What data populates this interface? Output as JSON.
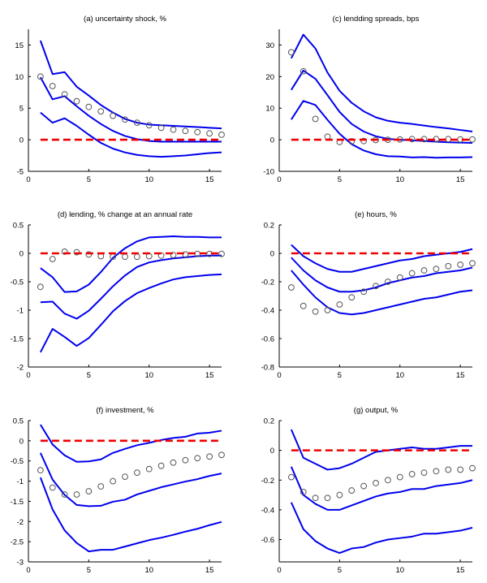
{
  "chart_data": [
    {
      "type": "line",
      "title": "(a) uncertainty shock, %",
      "xlabel": "",
      "ylabel": "",
      "xlim": [
        0,
        16
      ],
      "ylim": [
        -5,
        17.5
      ],
      "xticks": [
        0,
        5,
        10,
        15
      ],
      "yticks": [
        -5,
        0,
        5,
        10,
        15
      ],
      "grid": false,
      "x": [
        1,
        2,
        3,
        4,
        5,
        6,
        7,
        8,
        9,
        10,
        11,
        12,
        13,
        14,
        15,
        16
      ],
      "series": [
        {
          "name": "upper band",
          "style": "blue-solid",
          "values": [
            15.7,
            10.4,
            10.7,
            8.4,
            7.0,
            5.5,
            4.3,
            3.3,
            2.7,
            2.4,
            2.3,
            2.2,
            2.1,
            2.0,
            1.9,
            1.8
          ]
        },
        {
          "name": "median",
          "style": "blue-solid",
          "values": [
            9.9,
            6.4,
            6.9,
            5.3,
            3.8,
            2.5,
            1.4,
            0.6,
            0.1,
            -0.2,
            -0.3,
            -0.3,
            -0.3,
            -0.3,
            -0.3,
            -0.3
          ]
        },
        {
          "name": "lower band",
          "style": "blue-solid",
          "values": [
            4.3,
            2.7,
            3.4,
            2.2,
            0.8,
            -0.5,
            -1.4,
            -2.0,
            -2.4,
            -2.6,
            -2.7,
            -2.6,
            -2.5,
            -2.3,
            -2.1,
            -2.0
          ]
        },
        {
          "name": "data estimate",
          "style": "circles",
          "values": [
            10.0,
            8.5,
            7.2,
            6.1,
            5.2,
            4.5,
            3.8,
            3.2,
            2.7,
            2.3,
            1.9,
            1.6,
            1.4,
            1.2,
            1.0,
            0.8
          ]
        },
        {
          "name": "zero line",
          "style": "red-dashed",
          "values": [
            0,
            0,
            0,
            0,
            0,
            0,
            0,
            0,
            0,
            0,
            0,
            0,
            0,
            0,
            0,
            0
          ]
        }
      ]
    },
    {
      "type": "line",
      "title": "(c) lendding spreads, bps",
      "xlabel": "",
      "ylabel": "",
      "xlim": [
        0,
        16
      ],
      "ylim": [
        -10,
        35
      ],
      "xticks": [
        0,
        5,
        10,
        15
      ],
      "yticks": [
        -10,
        0,
        10,
        20,
        30
      ],
      "grid": false,
      "x": [
        1,
        2,
        3,
        4,
        5,
        6,
        7,
        8,
        9,
        10,
        11,
        12,
        13,
        14,
        15,
        16
      ],
      "series": [
        {
          "name": "upper band",
          "style": "blue-solid",
          "values": [
            25.8,
            33.3,
            28.9,
            21.3,
            15.5,
            11.7,
            9.0,
            7.1,
            6.0,
            5.4,
            5.0,
            4.5,
            4.0,
            3.6,
            3.1,
            2.6
          ]
        },
        {
          "name": "median",
          "style": "blue-solid",
          "values": [
            15.8,
            21.9,
            19.3,
            14.1,
            8.8,
            5.0,
            2.6,
            1.1,
            0.3,
            0.0,
            -0.2,
            -0.4,
            -0.6,
            -0.8,
            -0.9,
            -1.0
          ]
        },
        {
          "name": "lower band",
          "style": "blue-solid",
          "values": [
            6.4,
            12.3,
            11.0,
            6.3,
            1.9,
            -1.4,
            -3.4,
            -4.6,
            -5.2,
            -5.3,
            -5.6,
            -5.5,
            -5.7,
            -5.6,
            -5.6,
            -5.5
          ]
        },
        {
          "name": "data estimate",
          "style": "circles",
          "values": [
            27.7,
            21.7,
            6.6,
            1.0,
            -0.7,
            -0.5,
            -0.4,
            -0.1,
            0.0,
            0.1,
            0.2,
            0.2,
            0.2,
            0.2,
            0.1,
            0.1
          ]
        },
        {
          "name": "zero line",
          "style": "red-dashed",
          "values": [
            0,
            0,
            0,
            0,
            0,
            0,
            0,
            0,
            0,
            0,
            0,
            0,
            0,
            0,
            0,
            0
          ]
        }
      ]
    },
    {
      "type": "line",
      "title": "(d) lending, % change at an annual rate",
      "xlabel": "",
      "ylabel": "",
      "xlim": [
        0,
        16
      ],
      "ylim": [
        -2,
        0.5
      ],
      "xticks": [
        0,
        5,
        10,
        15
      ],
      "yticks": [
        -2,
        -1.5,
        -1,
        -0.5,
        0,
        0.5
      ],
      "ytick_labels": [
        "-2",
        "-1.5",
        "-1",
        "-0.5",
        "0",
        "0.5"
      ],
      "grid": false,
      "x": [
        1,
        2,
        3,
        4,
        5,
        6,
        7,
        8,
        9,
        10,
        11,
        12,
        13,
        14,
        15,
        16
      ],
      "series": [
        {
          "name": "upper band",
          "style": "blue-solid",
          "values": [
            -0.26,
            -0.42,
            -0.68,
            -0.67,
            -0.55,
            -0.33,
            -0.08,
            0.09,
            0.21,
            0.28,
            0.29,
            0.3,
            0.29,
            0.29,
            0.28,
            0.28
          ]
        },
        {
          "name": "median",
          "style": "blue-solid",
          "values": [
            -0.86,
            -0.85,
            -1.06,
            -1.15,
            -1.01,
            -0.8,
            -0.58,
            -0.39,
            -0.24,
            -0.16,
            -0.12,
            -0.09,
            -0.07,
            -0.05,
            -0.04,
            -0.04
          ]
        },
        {
          "name": "lower band",
          "style": "blue-solid",
          "values": [
            -1.74,
            -1.33,
            -1.47,
            -1.63,
            -1.49,
            -1.26,
            -1.02,
            -0.84,
            -0.7,
            -0.61,
            -0.53,
            -0.46,
            -0.42,
            -0.4,
            -0.38,
            -0.37
          ]
        },
        {
          "name": "data estimate",
          "style": "circles",
          "values": [
            -0.59,
            -0.1,
            0.03,
            0.02,
            -0.02,
            -0.05,
            -0.06,
            -0.06,
            -0.06,
            -0.05,
            -0.04,
            -0.03,
            -0.02,
            -0.01,
            -0.01,
            -0.01
          ]
        },
        {
          "name": "zero line",
          "style": "red-dashed",
          "values": [
            0,
            0,
            0,
            0,
            0,
            0,
            0,
            0,
            0,
            0,
            0,
            0,
            0,
            0,
            0,
            0
          ]
        }
      ]
    },
    {
      "type": "line",
      "title": "(e) hours, %",
      "xlabel": "",
      "ylabel": "",
      "xlim": [
        0,
        16
      ],
      "ylim": [
        -0.8,
        0.2
      ],
      "xticks": [
        0,
        5,
        10,
        15
      ],
      "yticks": [
        -0.8,
        -0.6,
        -0.4,
        -0.2,
        0,
        0.2
      ],
      "ytick_labels": [
        "-0.8",
        "-0.6",
        "-0.4",
        "-0.2",
        "0",
        "0.2"
      ],
      "grid": false,
      "x": [
        1,
        2,
        3,
        4,
        5,
        6,
        7,
        8,
        9,
        10,
        11,
        12,
        13,
        14,
        15,
        16
      ],
      "series": [
        {
          "name": "upper band",
          "style": "blue-solid",
          "values": [
            0.06,
            -0.02,
            -0.07,
            -0.11,
            -0.13,
            -0.13,
            -0.11,
            -0.09,
            -0.07,
            -0.05,
            -0.04,
            -0.02,
            -0.01,
            0.0,
            0.01,
            0.03
          ]
        },
        {
          "name": "median",
          "style": "blue-solid",
          "values": [
            -0.03,
            -0.12,
            -0.19,
            -0.24,
            -0.27,
            -0.27,
            -0.26,
            -0.24,
            -0.21,
            -0.19,
            -0.17,
            -0.16,
            -0.14,
            -0.13,
            -0.12,
            -0.1
          ]
        },
        {
          "name": "lower band",
          "style": "blue-solid",
          "values": [
            -0.12,
            -0.22,
            -0.31,
            -0.38,
            -0.42,
            -0.43,
            -0.42,
            -0.4,
            -0.38,
            -0.36,
            -0.34,
            -0.32,
            -0.31,
            -0.29,
            -0.27,
            -0.26
          ]
        },
        {
          "name": "data estimate",
          "style": "circles",
          "values": [
            -0.24,
            -0.37,
            -0.41,
            -0.4,
            -0.36,
            -0.31,
            -0.27,
            -0.23,
            -0.2,
            -0.17,
            -0.14,
            -0.12,
            -0.11,
            -0.09,
            -0.08,
            -0.07
          ]
        },
        {
          "name": "zero line",
          "style": "red-dashed",
          "values": [
            0,
            0,
            0,
            0,
            0,
            0,
            0,
            0,
            0,
            0,
            0,
            0,
            0,
            0,
            0,
            0
          ]
        }
      ]
    },
    {
      "type": "line",
      "title": "(f) investment, %",
      "xlabel": "",
      "ylabel": "",
      "xlim": [
        0,
        16
      ],
      "ylim": [
        -3,
        0.5
      ],
      "xticks": [
        0,
        5,
        10,
        15
      ],
      "yticks": [
        -3,
        -2.5,
        -2,
        -1.5,
        -1,
        -0.5,
        0,
        0.5
      ],
      "ytick_labels": [
        "-3",
        "-2.5",
        "-2",
        "-1.5",
        "-1",
        "-0.5",
        "0",
        "0.5"
      ],
      "grid": false,
      "x": [
        1,
        2,
        3,
        4,
        5,
        6,
        7,
        8,
        9,
        10,
        11,
        12,
        13,
        14,
        15,
        16
      ],
      "series": [
        {
          "name": "upper band",
          "style": "blue-solid",
          "values": [
            0.4,
            -0.09,
            -0.36,
            -0.52,
            -0.51,
            -0.46,
            -0.3,
            -0.2,
            -0.11,
            -0.05,
            0.02,
            0.07,
            0.1,
            0.18,
            0.2,
            0.25
          ]
        },
        {
          "name": "median",
          "style": "blue-solid",
          "values": [
            -0.3,
            -0.96,
            -1.34,
            -1.59,
            -1.62,
            -1.61,
            -1.51,
            -1.46,
            -1.33,
            -1.24,
            -1.15,
            -1.08,
            -1.01,
            -0.95,
            -0.87,
            -0.81
          ]
        },
        {
          "name": "lower band",
          "style": "blue-solid",
          "values": [
            -0.91,
            -1.7,
            -2.22,
            -2.53,
            -2.74,
            -2.7,
            -2.7,
            -2.62,
            -2.54,
            -2.46,
            -2.4,
            -2.33,
            -2.25,
            -2.18,
            -2.09,
            -2.01
          ]
        },
        {
          "name": "data estimate",
          "style": "circles",
          "values": [
            -0.73,
            -1.16,
            -1.33,
            -1.33,
            -1.25,
            -1.13,
            -1.0,
            -0.89,
            -0.79,
            -0.7,
            -0.62,
            -0.54,
            -0.48,
            -0.43,
            -0.39,
            -0.35
          ]
        },
        {
          "name": "zero line",
          "style": "red-dashed",
          "values": [
            0,
            0,
            0,
            0,
            0,
            0,
            0,
            0,
            0,
            0,
            0,
            0,
            0,
            0,
            0,
            0
          ]
        }
      ]
    },
    {
      "type": "line",
      "title": "(g) output, %",
      "xlabel": "",
      "ylabel": "",
      "xlim": [
        0,
        16
      ],
      "ylim": [
        -0.75,
        0.2
      ],
      "xticks": [
        0,
        5,
        10,
        15
      ],
      "yticks": [
        -0.6,
        -0.4,
        -0.2,
        0,
        0.2
      ],
      "ytick_labels": [
        "-0.6",
        "-0.4",
        "-0.2",
        "0",
        "0.2"
      ],
      "grid": false,
      "x": [
        1,
        2,
        3,
        4,
        5,
        6,
        7,
        8,
        9,
        10,
        11,
        12,
        13,
        14,
        15,
        16
      ],
      "series": [
        {
          "name": "upper band",
          "style": "blue-solid",
          "values": [
            0.14,
            -0.05,
            -0.09,
            -0.13,
            -0.12,
            -0.09,
            -0.05,
            -0.01,
            0.0,
            0.01,
            0.02,
            0.01,
            0.01,
            0.02,
            0.03,
            0.03
          ]
        },
        {
          "name": "median",
          "style": "blue-solid",
          "values": [
            -0.11,
            -0.3,
            -0.36,
            -0.4,
            -0.4,
            -0.37,
            -0.34,
            -0.31,
            -0.29,
            -0.28,
            -0.26,
            -0.26,
            -0.24,
            -0.23,
            -0.22,
            -0.2
          ]
        },
        {
          "name": "lower band",
          "style": "blue-solid",
          "values": [
            -0.35,
            -0.53,
            -0.61,
            -0.66,
            -0.69,
            -0.66,
            -0.65,
            -0.62,
            -0.6,
            -0.59,
            -0.58,
            -0.56,
            -0.56,
            -0.55,
            -0.54,
            -0.52
          ]
        },
        {
          "name": "data estimate",
          "style": "circles",
          "values": [
            -0.18,
            -0.28,
            -0.32,
            -0.32,
            -0.3,
            -0.27,
            -0.24,
            -0.22,
            -0.2,
            -0.18,
            -0.16,
            -0.15,
            -0.14,
            -0.13,
            -0.13,
            -0.12
          ]
        },
        {
          "name": "zero line",
          "style": "red-dashed",
          "values": [
            0,
            0,
            0,
            0,
            0,
            0,
            0,
            0,
            0,
            0,
            0,
            0,
            0,
            0,
            0,
            0
          ]
        }
      ]
    }
  ],
  "colors": {
    "band": "#0000ee",
    "zero_line": "#ee0000",
    "circles": "#555555",
    "axis": "#000000"
  }
}
